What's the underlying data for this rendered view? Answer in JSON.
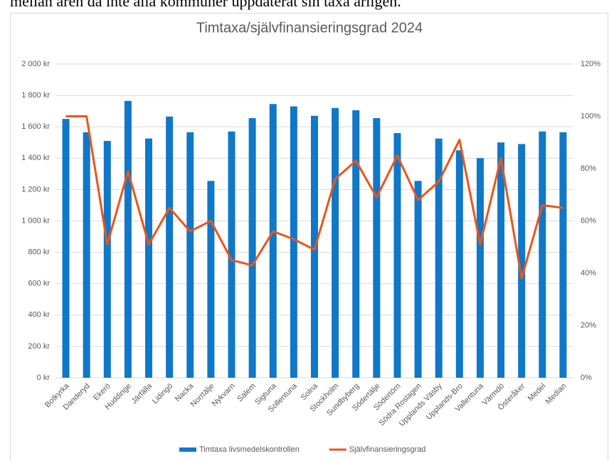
{
  "header_text": "mellan åren då inte alla kommuner uppdaterat sin taxa årligen.",
  "chart_data": {
    "type": "bar_line",
    "title": "Timtaxa/självfinansieringsgrad 2024",
    "categories": [
      "Botkyrka",
      "Danderyd",
      "Ekerö",
      "Huddinge",
      "Järfälla",
      "Lidingö",
      "Nacka",
      "Norrtälje",
      "Nykvarn",
      "Salem",
      "Sigtuna",
      "Sollentuna",
      "Solna",
      "Stockholm",
      "Sundbyberg",
      "Södertälje",
      "Södertörn",
      "Södra Roslagen",
      "Upplands Väsby",
      "Upplands-Bro",
      "Vallentuna",
      "Värmdö",
      "Österåker",
      "Medel",
      "Median"
    ],
    "series": [
      {
        "name": "Timtaxa livsmedelskontrollen",
        "type": "bar",
        "color": "#0f78c8",
        "values": [
          1650,
          1565,
          1510,
          1765,
          1525,
          1665,
          1565,
          1255,
          1570,
          1655,
          1745,
          1730,
          1670,
          1720,
          1705,
          1655,
          1560,
          1255,
          1525,
          1450,
          1400,
          1500,
          1490,
          1570,
          1565
        ]
      },
      {
        "name": "Självfinansieringsgrad",
        "type": "line",
        "axis": "y2",
        "color": "#e8561c",
        "values": [
          100,
          100,
          51,
          79,
          51,
          65,
          56,
          60,
          45,
          43,
          56,
          53,
          49,
          76,
          83,
          69,
          85,
          68,
          75,
          91,
          51,
          84,
          38,
          66,
          65
        ]
      }
    ],
    "ylim": [
      0,
      2000
    ],
    "yticks": [
      {
        "value": 0,
        "label": "0 kr"
      },
      {
        "value": 200,
        "label": "200 kr"
      },
      {
        "value": 400,
        "label": "400 kr"
      },
      {
        "value": 600,
        "label": "600 kr"
      },
      {
        "value": 800,
        "label": "800 kr"
      },
      {
        "value": 1000,
        "label": "1 000 kr"
      },
      {
        "value": 1200,
        "label": "1 200 kr"
      },
      {
        "value": 1400,
        "label": "1 400 kr"
      },
      {
        "value": 1600,
        "label": "1 600 kr"
      },
      {
        "value": 1800,
        "label": "1 800 kr"
      },
      {
        "value": 2000,
        "label": "2 000 kr"
      }
    ],
    "y2lim": [
      0,
      120
    ],
    "y2ticks": [
      {
        "value": 0,
        "label": "0%"
      },
      {
        "value": 20,
        "label": "20%"
      },
      {
        "value": 40,
        "label": "40%"
      },
      {
        "value": 60,
        "label": "60%"
      },
      {
        "value": 80,
        "label": "80%"
      },
      {
        "value": 100,
        "label": "100%"
      },
      {
        "value": 120,
        "label": "120%"
      }
    ],
    "grid": true,
    "legend": "bottom"
  }
}
